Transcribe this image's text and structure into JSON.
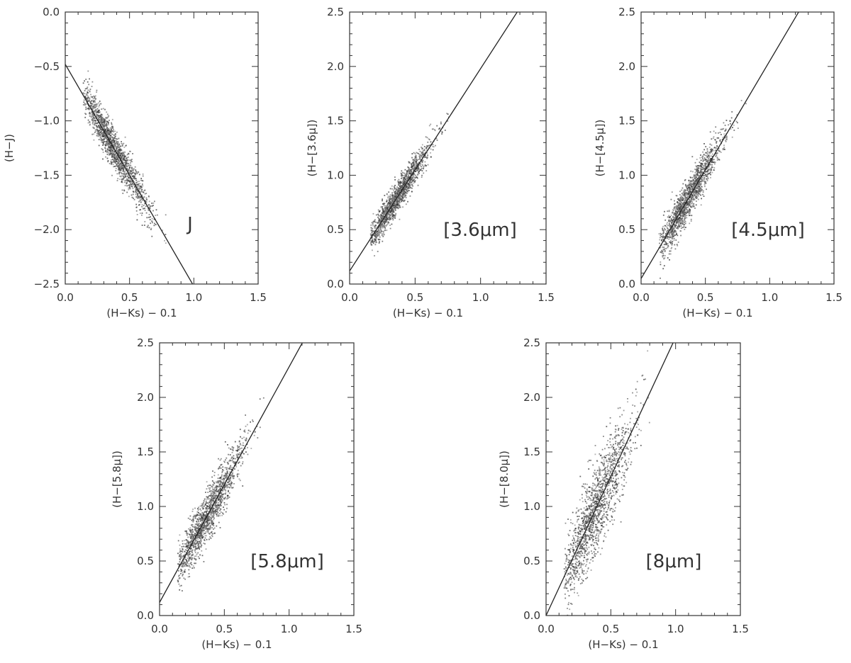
{
  "chart_data": [
    {
      "type": "scatter",
      "panel_label": "J",
      "xlabel": "(H−Ks) − 0.1",
      "ylabel": "(H−J)",
      "xlim": [
        0.0,
        1.5
      ],
      "ylim": [
        -2.5,
        0.0
      ],
      "x_ticks": [
        "0.0",
        "0.5",
        "1.0",
        "1.5"
      ],
      "y_ticks": [
        "0.0",
        "-0.5",
        "-1.0",
        "-1.5",
        "-2.0",
        "-2.5"
      ],
      "fit_line": {
        "intercept": -0.48,
        "slope": -2.04
      },
      "cloud": {
        "x_mean": 0.38,
        "x_sd": 0.14,
        "x_min": 0.14,
        "x_max": 0.82,
        "scatter_sd": 0.09,
        "n_points": 1500
      }
    },
    {
      "type": "scatter",
      "panel_label": "[3.6μm]",
      "xlabel": "(H−Ks) − 0.1",
      "ylabel": "(H−[3.6μ])",
      "xlim": [
        0.0,
        1.5
      ],
      "ylim": [
        0.0,
        2.5
      ],
      "x_ticks": [
        "0.0",
        "0.5",
        "1.0",
        "1.5"
      ],
      "y_ticks": [
        "0.0",
        "0.5",
        "1.0",
        "1.5",
        "2.0",
        "2.5"
      ],
      "fit_line": {
        "intercept": 0.12,
        "slope": 1.86
      },
      "cloud": {
        "x_mean": 0.36,
        "x_sd": 0.13,
        "x_min": 0.16,
        "x_max": 0.8,
        "scatter_sd": 0.07,
        "n_points": 1500
      }
    },
    {
      "type": "scatter",
      "panel_label": "[4.5μm]",
      "xlabel": "(H−Ks) − 0.1",
      "ylabel": "(H−[4.5μ])",
      "xlim": [
        0.0,
        1.5
      ],
      "ylim": [
        0.0,
        2.5
      ],
      "x_ticks": [
        "0.0",
        "0.5",
        "1.0",
        "1.5"
      ],
      "y_ticks": [
        "0.0",
        "0.5",
        "1.0",
        "1.5",
        "2.0",
        "2.5"
      ],
      "fit_line": {
        "intercept": 0.05,
        "slope": 2.0
      },
      "cloud": {
        "x_mean": 0.36,
        "x_sd": 0.13,
        "x_min": 0.14,
        "x_max": 0.82,
        "scatter_sd": 0.09,
        "n_points": 1500
      }
    },
    {
      "type": "scatter",
      "panel_label": "[5.8μm]",
      "xlabel": "(H−Ks) − 0.1",
      "ylabel": "(H−[5.8μ])",
      "xlim": [
        0.0,
        1.5
      ],
      "ylim": [
        0.0,
        2.5
      ],
      "x_ticks": [
        "0.0",
        "0.5",
        "1.0",
        "1.5"
      ],
      "y_ticks": [
        "0.0",
        "0.5",
        "1.0",
        "1.5",
        "2.0",
        "2.5"
      ],
      "fit_line": {
        "intercept": 0.12,
        "slope": 2.16
      },
      "cloud": {
        "x_mean": 0.36,
        "x_sd": 0.14,
        "x_min": 0.14,
        "x_max": 0.82,
        "scatter_sd": 0.11,
        "n_points": 1500
      }
    },
    {
      "type": "scatter",
      "panel_label": "[8μm]",
      "xlabel": "(H−Ks) − 0.1",
      "ylabel": "(H−[8.0μ])",
      "xlim": [
        0.0,
        1.5
      ],
      "ylim": [
        0.0,
        2.5
      ],
      "x_ticks": [
        "0.0",
        "0.5",
        "1.0",
        "1.5"
      ],
      "y_ticks": [
        "0.0",
        "0.5",
        "1.0",
        "1.5",
        "2.0",
        "2.5"
      ],
      "fit_line": {
        "intercept": 0.0,
        "slope": 2.55
      },
      "cloud": {
        "x_mean": 0.38,
        "x_sd": 0.15,
        "x_min": 0.14,
        "x_max": 0.82,
        "scatter_sd": 0.2,
        "n_points": 1500
      }
    }
  ]
}
